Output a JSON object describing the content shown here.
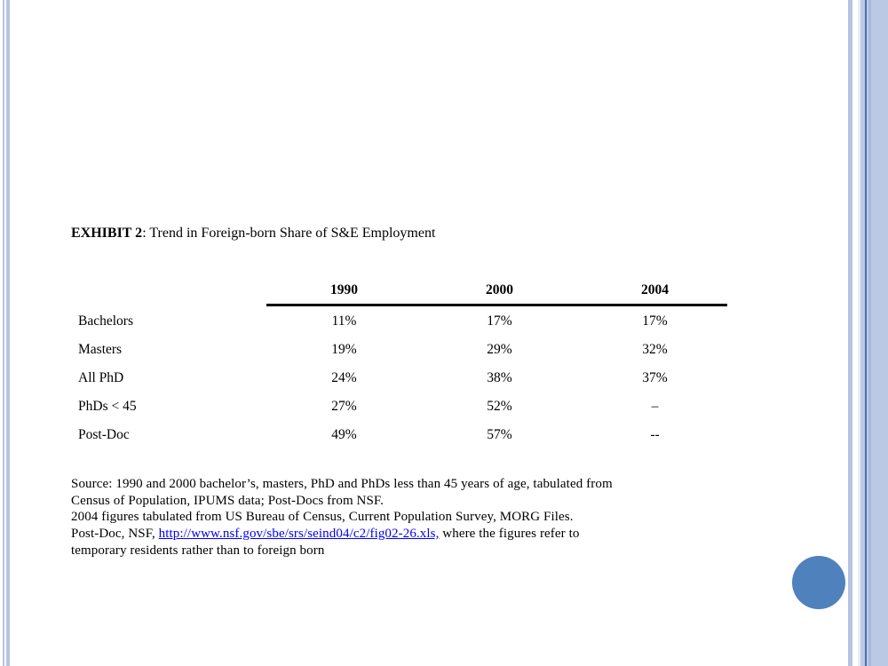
{
  "title": {
    "bold": "EXHIBIT 2",
    "rest": ": Trend in Foreign-born Share of S&E Employment"
  },
  "table": {
    "columns": [
      "1990",
      "2000",
      "2004"
    ],
    "rows": [
      {
        "label": "Bachelors",
        "values": [
          "11%",
          "17%",
          "17%"
        ]
      },
      {
        "label": "Masters",
        "values": [
          "19%",
          "29%",
          "32%"
        ]
      },
      {
        "label": "All PhD",
        "values": [
          "24%",
          "38%",
          "37%"
        ]
      },
      {
        "label": "PhDs < 45",
        "values": [
          "27%",
          "52%",
          "–"
        ]
      },
      {
        "label": "Post-Doc",
        "values": [
          "49%",
          "57%",
          "--"
        ]
      }
    ]
  },
  "source": {
    "lines": [
      "Source: 1990 and 2000 bachelor’s, masters, PhD and PhDs less than 45 years of age, tabulated from",
      "Census of Population, IPUMS data; Post-Docs from NSF.",
      "2004 figures tabulated from US Bureau of Census, Current Population Survey, MORG Files."
    ],
    "link_line": {
      "pre": "Post-Doc, NSF, ",
      "link": "http://www.nsf.gov/sbe/srs/seind04/c2/fig02-26.xls,",
      "post": " where the figures refer to"
    },
    "last_line": "temporary residents rather than to foreign born"
  },
  "colors": {
    "accent_stripe": "#b6c4e1",
    "accent_dark_line": "#4a73a9",
    "circle": "#4f81bd",
    "link": "#0000ff"
  }
}
